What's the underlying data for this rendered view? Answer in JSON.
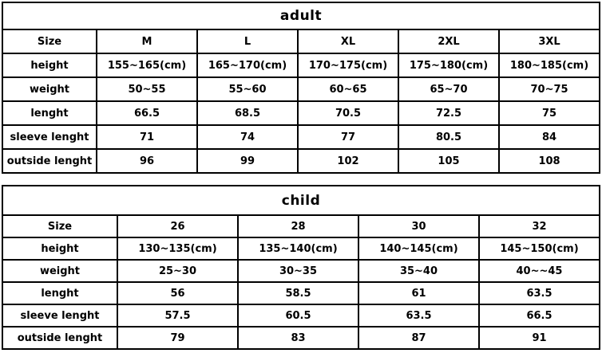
{
  "colors": {
    "background": "#ffffff",
    "border": "#000000",
    "text": "#000000"
  },
  "tables": [
    {
      "id": "adult",
      "title": "adult",
      "size_row": {
        "label": "Size",
        "columns": [
          "M",
          "L",
          "XL",
          "2XL",
          "3XL"
        ]
      },
      "rows": [
        {
          "label": "height",
          "values": [
            "155~165(cm)",
            "165~170(cm)",
            "170~175(cm)",
            "175~180(cm)",
            "180~185(cm)"
          ]
        },
        {
          "label": "weight",
          "values": [
            "50~55",
            "55~60",
            "60~65",
            "65~70",
            "70~75"
          ]
        },
        {
          "label": "lenght",
          "values": [
            "66.5",
            "68.5",
            "70.5",
            "72.5",
            "75"
          ]
        },
        {
          "label": "sleeve lenght",
          "values": [
            "71",
            "74",
            "77",
            "80.5",
            "84"
          ]
        },
        {
          "label": "outside lenght",
          "values": [
            "96",
            "99",
            "102",
            "105",
            "108"
          ]
        }
      ]
    },
    {
      "id": "child",
      "title": "child",
      "size_row": {
        "label": "Size",
        "columns": [
          "26",
          "28",
          "30",
          "32"
        ]
      },
      "rows": [
        {
          "label": "height",
          "values": [
            "130~135(cm)",
            "135~140(cm)",
            "140~145(cm)",
            "145~150(cm)"
          ]
        },
        {
          "label": "weight",
          "values": [
            "25~30",
            "30~35",
            "35~40",
            "40~~45"
          ]
        },
        {
          "label": "lenght",
          "values": [
            "56",
            "58.5",
            "61",
            "63.5"
          ]
        },
        {
          "label": "sleeve lenght",
          "values": [
            "57.5",
            "60.5",
            "63.5",
            "66.5"
          ]
        },
        {
          "label": "outside lenght",
          "values": [
            "79",
            "83",
            "87",
            "91"
          ]
        }
      ]
    }
  ]
}
